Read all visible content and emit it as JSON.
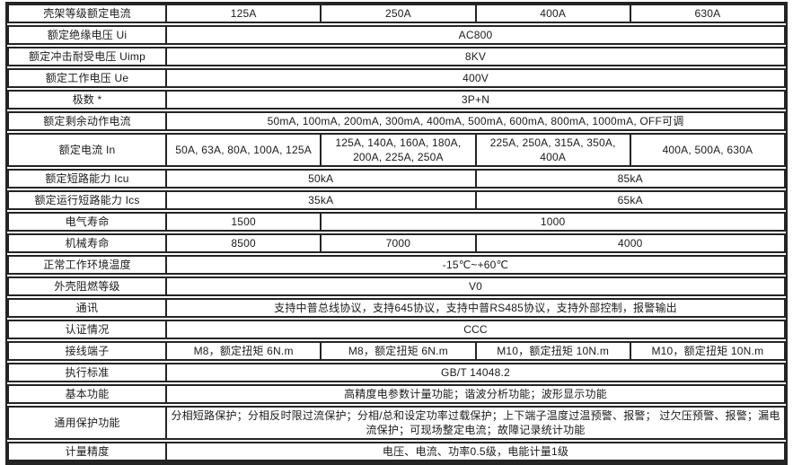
{
  "colors": {
    "border": "#242424",
    "text": "#1b1b1b",
    "background": "#ffffff"
  },
  "table": {
    "rows": [
      {
        "label": "壳架等级额定电流",
        "cells": [
          {
            "text": "125A",
            "span": 1
          },
          {
            "text": "250A",
            "span": 1
          },
          {
            "text": "400A",
            "span": 1
          },
          {
            "text": "630A",
            "span": 1
          }
        ]
      },
      {
        "label": "额定绝缘电压 Ui",
        "cells": [
          {
            "text": "AC800",
            "span": 4
          }
        ]
      },
      {
        "label": "额定冲击耐受电压 Uimp",
        "cells": [
          {
            "text": "8KV",
            "span": 4
          }
        ]
      },
      {
        "label": "额定工作电压 Ue",
        "cells": [
          {
            "text": "400V",
            "span": 4
          }
        ]
      },
      {
        "label": "极数 *",
        "cells": [
          {
            "text": "3P+N",
            "span": 4
          }
        ]
      },
      {
        "label": "额定剩余动作电流",
        "cells": [
          {
            "text": "50mA, 100mA, 200mA, 300mA, 400mA, 500mA, 600mA, 800mA, 1000mA, OFF可调",
            "span": 4
          }
        ]
      },
      {
        "label": "额定电流 In",
        "cells": [
          {
            "text": "50A, 63A, 80A, 100A, 125A",
            "span": 1
          },
          {
            "text": "125A, 140A, 160A, 180A, 200A, 225A, 250A",
            "span": 1
          },
          {
            "text": "225A, 250A, 315A, 350A, 400A",
            "span": 1
          },
          {
            "text": "400A, 500A, 630A",
            "span": 1
          }
        ]
      },
      {
        "label": "额定短路能力 Icu",
        "cells": [
          {
            "text": "50kA",
            "span": 2
          },
          {
            "text": "85kA",
            "span": 2
          }
        ]
      },
      {
        "label": "额定运行短路能力 Ics",
        "cells": [
          {
            "text": "35kA",
            "span": 2
          },
          {
            "text": "65kA",
            "span": 2
          }
        ]
      },
      {
        "label": "电气寿命",
        "cells": [
          {
            "text": "1500",
            "span": 1
          },
          {
            "text": "1000",
            "span": 3
          }
        ]
      },
      {
        "label": "机械寿命",
        "cells": [
          {
            "text": "8500",
            "span": 1
          },
          {
            "text": "7000",
            "span": 1
          },
          {
            "text": "4000",
            "span": 2
          }
        ]
      },
      {
        "label": "正常工作环境温度",
        "cells": [
          {
            "text": "-15℃~+60℃",
            "span": 4
          }
        ]
      },
      {
        "label": "外壳阻燃等级",
        "cells": [
          {
            "text": "V0",
            "span": 4
          }
        ]
      },
      {
        "label": "通讯",
        "cells": [
          {
            "text": "支持中普总线协议，支持645协议，支持中普RS485协议，支持外部控制，报警输出",
            "span": 4
          }
        ]
      },
      {
        "label": "认证情况",
        "cells": [
          {
            "text": "CCC",
            "span": 4
          }
        ]
      },
      {
        "label": "接线端子",
        "cells": [
          {
            "text": "M8，额定扭矩 6N.m",
            "span": 1
          },
          {
            "text": "M8，额定扭矩 6N.m",
            "span": 1
          },
          {
            "text": "M10，额定扭矩 10N.m",
            "span": 1
          },
          {
            "text": "M10，额定扭矩 10N.m",
            "span": 1
          }
        ]
      },
      {
        "label": "执行标准",
        "cells": [
          {
            "text": "GB/T 14048.2",
            "span": 4
          }
        ]
      },
      {
        "label": "基本功能",
        "cells": [
          {
            "text": "高精度电参数计量功能；谐波分析功能；波形显示功能",
            "span": 4
          }
        ]
      },
      {
        "label": "通用保护功能",
        "cells": [
          {
            "text": "分相短路保护；分相反时限过流保护；分相/总和设定功率过载保护；上下端子温度过温预警、报警； 过欠压预警、报警；漏电流保护；可现场整定电流；故障记录统计功能",
            "span": 4
          }
        ]
      },
      {
        "label": "计量精度",
        "cells": [
          {
            "text": "电压、电流、功率0.5级，电能计量1级",
            "span": 4
          }
        ]
      }
    ]
  }
}
